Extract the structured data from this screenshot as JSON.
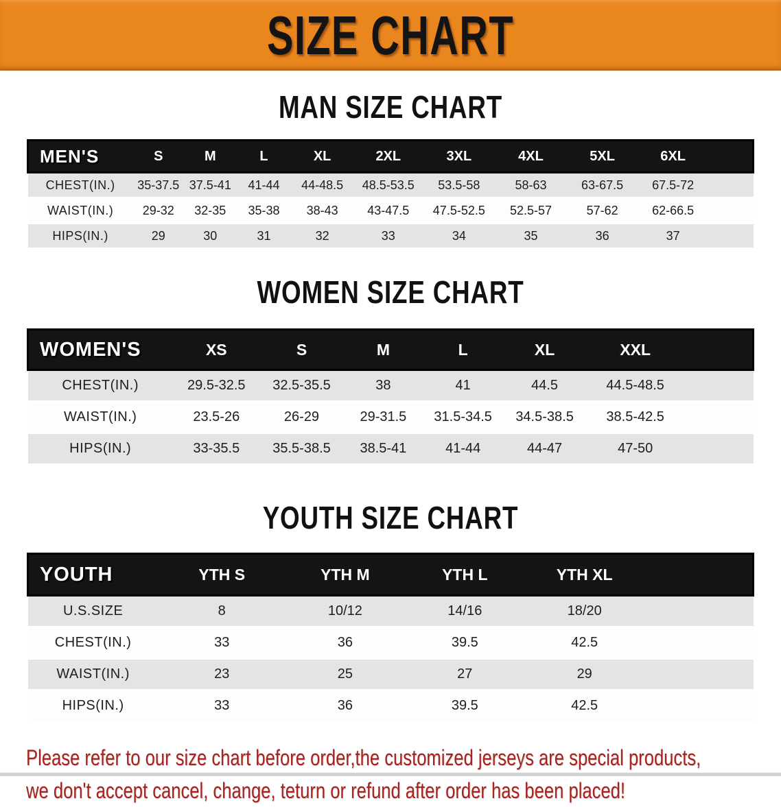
{
  "banner": {
    "title": "SIZE CHART",
    "bg_color": "#ea861e",
    "text_color": "#141414"
  },
  "tables": [
    {
      "title": "MAN SIZE CHART",
      "header_label": "MEN'S",
      "sizes": [
        "S",
        "M",
        "L",
        "XL",
        "2XL",
        "3XL",
        "4XL",
        "5XL",
        "6XL"
      ],
      "rows": [
        {
          "label": "CHEST(IN.)",
          "values": [
            "35-37.5",
            "37.5-41",
            "41-44",
            "44-48.5",
            "48.5-53.5",
            "53.5-58",
            "58-63",
            "63-67.5",
            "67.5-72"
          ]
        },
        {
          "label": "WAIST(IN.)",
          "values": [
            "29-32",
            "32-35",
            "35-38",
            "38-43",
            "43-47.5",
            "47.5-52.5",
            "52.5-57",
            "57-62",
            "62-66.5"
          ]
        },
        {
          "label": "HIPS(IN.)",
          "values": [
            "29",
            "30",
            "31",
            "32",
            "33",
            "34",
            "35",
            "36",
            "37"
          ]
        }
      ]
    },
    {
      "title": "WOMEN SIZE CHART",
      "header_label": "WOMEN'S",
      "sizes": [
        "XS",
        "S",
        "M",
        "L",
        "XL",
        "XXL"
      ],
      "rows": [
        {
          "label": "CHEST(IN.)",
          "values": [
            "29.5-32.5",
            "32.5-35.5",
            "38",
            "41",
            "44.5",
            "44.5-48.5"
          ]
        },
        {
          "label": "WAIST(IN.)",
          "values": [
            "23.5-26",
            "26-29",
            "29-31.5",
            "31.5-34.5",
            "34.5-38.5",
            "38.5-42.5"
          ]
        },
        {
          "label": "HIPS(IN.)",
          "values": [
            "33-35.5",
            "35.5-38.5",
            "38.5-41",
            "41-44",
            "44-47",
            "47-50"
          ]
        }
      ]
    },
    {
      "title": "YOUTH SIZE CHART",
      "header_label": "YOUTH",
      "sizes": [
        "YTH S",
        "YTH M",
        "YTH L",
        "YTH XL"
      ],
      "rows": [
        {
          "label": "U.S.SIZE",
          "values": [
            "8",
            "10/12",
            "14/16",
            "18/20"
          ]
        },
        {
          "label": "CHEST(IN.)",
          "values": [
            "33",
            "36",
            "39.5",
            "42.5"
          ]
        },
        {
          "label": "WAIST(IN.)",
          "values": [
            "23",
            "25",
            "27",
            "29"
          ]
        },
        {
          "label": "HIPS(IN.)",
          "values": [
            "33",
            "36",
            "39.5",
            "42.5"
          ]
        }
      ]
    }
  ],
  "footer": {
    "line1": "Please refer to our size chart before order,the customized jerseys are special products,",
    "line2": "we don't accept cancel, change, teturn or refund after order has been placed!",
    "color": "#a8231f"
  }
}
